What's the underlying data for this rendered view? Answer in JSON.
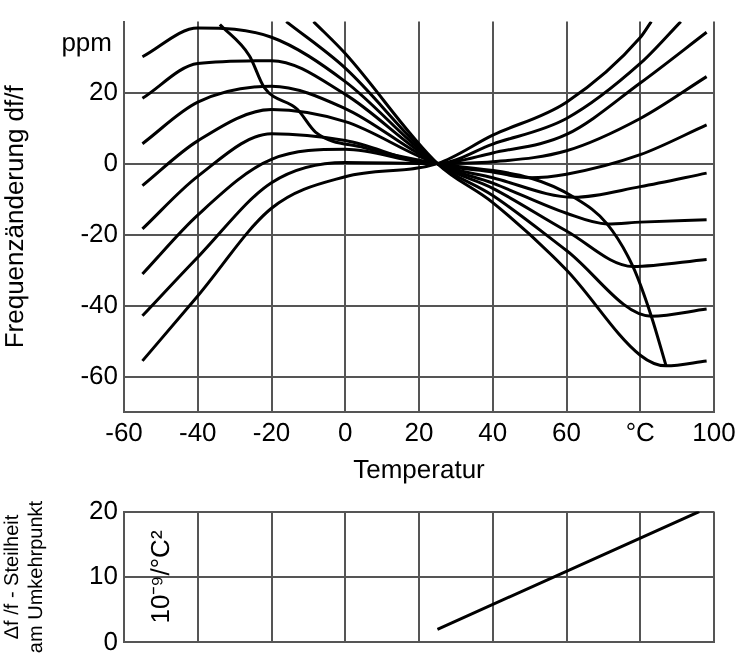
{
  "chart_data": [
    {
      "type": "line",
      "xlabel": "Temperatur",
      "ylabel": "Frequenzänderung df/f",
      "annotations": [
        "ppm"
      ],
      "xlim": [
        -60,
        100
      ],
      "xticks": [
        -60,
        -40,
        -20,
        0,
        20,
        40,
        60,
        {
          "value": 80,
          "label": "°C"
        },
        100
      ],
      "ylim": [
        -70,
        40
      ],
      "yticks": [
        -60,
        -40,
        -20,
        0,
        20
      ],
      "grid": true,
      "legend": false,
      "marker": "none",
      "series": [
        {
          "color": "#000000",
          "x": [
            -55,
            -40,
            -20,
            0,
            25,
            40,
            60,
            80,
            83
          ],
          "values": [
            -55.6,
            -37.3,
            -12.6,
            -3.7,
            0,
            8,
            17.3,
            35.5,
            40
          ]
        },
        {
          "color": "#000000",
          "x": [
            -55,
            -40,
            -20,
            0,
            25,
            40,
            60,
            80,
            91
          ],
          "values": [
            -42.9,
            -26.4,
            -5.4,
            0.3,
            0,
            5.5,
            12.7,
            28.2,
            40
          ]
        },
        {
          "color": "#000000",
          "x": [
            -55,
            -40,
            -20,
            0,
            25,
            40,
            60,
            80,
            98
          ],
          "values": [
            -31.1,
            -14.5,
            1.2,
            4,
            0,
            3,
            8.2,
            22.7,
            37
          ]
        },
        {
          "color": "#000000",
          "x": [
            -55,
            -40,
            -20,
            0,
            25,
            40,
            60,
            80,
            98
          ],
          "values": [
            -18.4,
            -3.6,
            8.4,
            6.5,
            0,
            0.5,
            3.6,
            12.7,
            24.5
          ]
        },
        {
          "color": "#000000",
          "x": [
            -55,
            -40,
            -20,
            0,
            25,
            40,
            50,
            60,
            80,
            98
          ],
          "values": [
            -6.2,
            6.4,
            15.2,
            11.8,
            0,
            -2.4,
            -4,
            -3,
            2.5,
            10.9
          ]
        },
        {
          "color": "#000000",
          "x": [
            -55,
            -40,
            -20,
            0,
            25,
            40,
            62,
            80,
            98
          ],
          "values": [
            5.6,
            17.3,
            21.8,
            15.5,
            0,
            -4,
            -9.5,
            -6.5,
            -2.7
          ]
        },
        {
          "color": "#000000",
          "x": [
            -55,
            -40,
            -20,
            0,
            25,
            40,
            60,
            71,
            80,
            98
          ],
          "values": [
            18.4,
            28.2,
            29,
            19.5,
            0,
            -5.5,
            -14,
            -17,
            -16.5,
            -15.8
          ]
        },
        {
          "color": "#000000",
          "x": [
            -55,
            -40,
            -20,
            0,
            25,
            40,
            60,
            78,
            98
          ],
          "values": [
            30.1,
            38.2,
            35.6,
            23.1,
            0,
            -7,
            -19,
            -29,
            -27
          ]
        },
        {
          "color": "#000000",
          "x": [
            -16,
            0,
            25,
            40,
            60,
            83,
            98
          ],
          "values": [
            40,
            26.9,
            0,
            -9,
            -24.5,
            -43,
            -41
          ]
        },
        {
          "color": "#000000",
          "x": [
            -8.6,
            0,
            25,
            40,
            60,
            80,
            87,
            98
          ],
          "values": [
            40,
            31,
            0,
            -11,
            -30,
            -54,
            -57,
            -55.6
          ]
        },
        {
          "color": "#000000",
          "x": [
            -34,
            -26,
            -22,
            -13,
            -8,
            5,
            25,
            50,
            62,
            71,
            78,
            83,
            87
          ],
          "values": [
            39.2,
            30.4,
            21.5,
            15.3,
            8.8,
            4.5,
            0,
            -4,
            -9.5,
            -17,
            -29,
            -43,
            -57
          ]
        }
      ]
    },
    {
      "type": "line",
      "ylabel": "Δf /f - Steilheit\nam Umkehrpunkt",
      "annotations": [
        "10⁻⁹/°C²"
      ],
      "xlim": [
        -60,
        100
      ],
      "xticks": [
        -60,
        -40,
        -20,
        0,
        20,
        40,
        60,
        80,
        100
      ],
      "tick_labels": "y",
      "ylim": [
        0,
        20
      ],
      "yticks": [
        0,
        10,
        20
      ],
      "grid": true,
      "legend": false,
      "marker": "none",
      "series": [
        {
          "color": "#000000",
          "x": [
            25,
            96
          ],
          "values": [
            2,
            20
          ]
        }
      ]
    }
  ]
}
